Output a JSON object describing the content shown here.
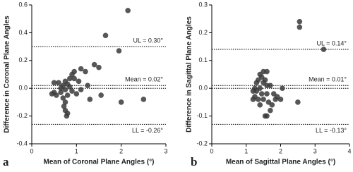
{
  "chart_data": [
    {
      "type": "scatter",
      "panel": "a",
      "x_label": "Mean of Coronal Plane Angles (°)",
      "y_label": "Difference in Coronal Plane Angles",
      "xlim": [
        0,
        3
      ],
      "xticks": [
        0,
        1,
        2,
        3
      ],
      "ylim": [
        -0.4,
        0.6
      ],
      "yticks": [
        -0.4,
        -0.2,
        {
          "value": 0,
          "label": "0.0"
        },
        0.2,
        0.4,
        0.6
      ],
      "reference_lines": [
        {
          "value": 0.3,
          "label": "UL = 0.30°"
        },
        {
          "value": 0.02,
          "label": "Mean = 0.02°"
        },
        {
          "value": -0.26,
          "label": "LL = -0.26°"
        }
      ],
      "zero_line": true,
      "color": "#3a3a3a",
      "x": [
        2.15,
        1.65,
        1.95,
        1.5,
        1.4,
        1.1,
        1.2,
        0.95,
        0.9,
        0.85,
        0.95,
        1.05,
        0.75,
        0.8,
        0.6,
        0.5,
        0.7,
        0.85,
        0.65,
        0.75,
        0.9,
        0.5,
        0.45,
        0.55,
        0.65,
        0.8,
        0.7,
        0.75,
        0.72,
        0.75,
        0.8,
        0.78,
        1.0,
        1.3,
        2.0,
        2.5,
        1.55,
        1.25,
        1.1
      ],
      "values": [
        0.56,
        0.38,
        0.27,
        0.15,
        0.17,
        0.14,
        0.12,
        0.12,
        0.1,
        0.07,
        0.07,
        0.05,
        0.05,
        0.03,
        0.04,
        0.04,
        0.02,
        0.01,
        0.0,
        -0.01,
        -0.02,
        -0.03,
        -0.04,
        -0.05,
        -0.03,
        -0.05,
        -0.07,
        -0.1,
        -0.13,
        -0.16,
        -0.18,
        -0.2,
        -0.04,
        -0.08,
        -0.1,
        -0.08,
        -0.05,
        0.02,
        -0.01
      ]
    },
    {
      "type": "scatter",
      "panel": "b",
      "x_label": "Mean of Sagittal Plane Angles (°)",
      "y_label": "Difference in Sagittal Plane Angles",
      "xlim": [
        0,
        4
      ],
      "xticks": [
        0,
        1,
        2,
        3,
        4
      ],
      "ylim": [
        -0.2,
        0.3
      ],
      "yticks": [
        -0.2,
        -0.1,
        {
          "value": 0,
          "label": "0.0"
        },
        0.1,
        0.2,
        0.3
      ],
      "reference_lines": [
        {
          "value": 0.14,
          "label": "UL = 0.14°"
        },
        {
          "value": 0.01,
          "label": "Mean = 0.01°"
        },
        {
          "value": -0.13,
          "label": "LL = -0.13°"
        }
      ],
      "zero_line": true,
      "color": "#3a3a3a",
      "x": [
        2.55,
        2.55,
        3.25,
        2.5,
        1.5,
        1.6,
        1.4,
        1.45,
        1.55,
        1.35,
        1.3,
        1.5,
        1.6,
        1.7,
        1.25,
        1.4,
        1.2,
        1.3,
        1.45,
        1.6,
        1.8,
        1.9,
        2.05,
        1.25,
        1.35,
        1.5,
        1.65,
        1.7,
        1.55,
        1.6,
        1.75,
        1.2,
        1.4,
        1.85,
        2.0
      ],
      "values": [
        0.24,
        0.22,
        0.14,
        -0.05,
        0.06,
        0.06,
        0.05,
        0.04,
        0.03,
        0.03,
        0.02,
        0.02,
        0.01,
        0.01,
        0.0,
        0.0,
        -0.01,
        -0.01,
        -0.02,
        -0.02,
        -0.02,
        -0.03,
        0.0,
        -0.03,
        -0.04,
        -0.04,
        -0.05,
        -0.08,
        -0.1,
        -0.1,
        -0.06,
        -0.04,
        -0.06,
        -0.04,
        -0.04
      ]
    }
  ]
}
